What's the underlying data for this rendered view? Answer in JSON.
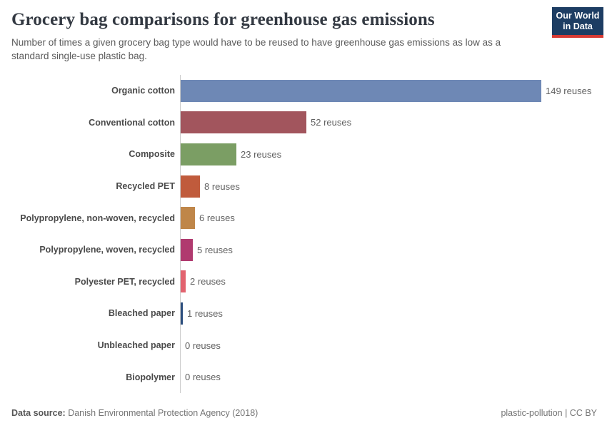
{
  "header": {
    "title": "Grocery bag comparisons for greenhouse gas emissions",
    "subtitle": "Number of times a given grocery bag type would have to be reused to have greenhouse gas emissions as low as a standard single-use plastic bag.",
    "logo": {
      "line1": "Our World",
      "line2": "in Data",
      "bg_color": "#1d3d63",
      "accent_color": "#d73a33"
    }
  },
  "chart_data": {
    "type": "bar",
    "orientation": "horizontal",
    "title": "Grocery bag comparisons for greenhouse gas emissions",
    "xlabel": "",
    "ylabel": "",
    "unit": "reuses",
    "xlim": [
      0,
      149
    ],
    "grid": false,
    "legend": false,
    "categories": [
      "Organic cotton",
      "Conventional cotton",
      "Composite",
      "Recycled PET",
      "Polypropylene, non-woven, recycled",
      "Polypropylene, woven, recycled",
      "Polyester PET, recycled",
      "Bleached paper",
      "Unbleached paper",
      "Biopolymer"
    ],
    "values": [
      149,
      52,
      23,
      8,
      6,
      5,
      2,
      1,
      0,
      0
    ],
    "value_labels": [
      "149 reuses",
      "52 reuses",
      "23 reuses",
      "8 reuses",
      "6 reuses",
      "5 reuses",
      "2 reuses",
      "1 reuses",
      "0 reuses",
      "0 reuses"
    ],
    "bar_colors": [
      "#6e88b5",
      "#a2555d",
      "#7b9e64",
      "#c05b3c",
      "#bf8649",
      "#b03a6f",
      "#e2636f",
      "#2d4f7e",
      null,
      null
    ],
    "axis_line_color": "#cccccc"
  },
  "footer": {
    "source_label": "Data source:",
    "source_value": " Danish Environmental Protection Agency (2018)",
    "credit": "plastic-pollution | CC BY"
  }
}
